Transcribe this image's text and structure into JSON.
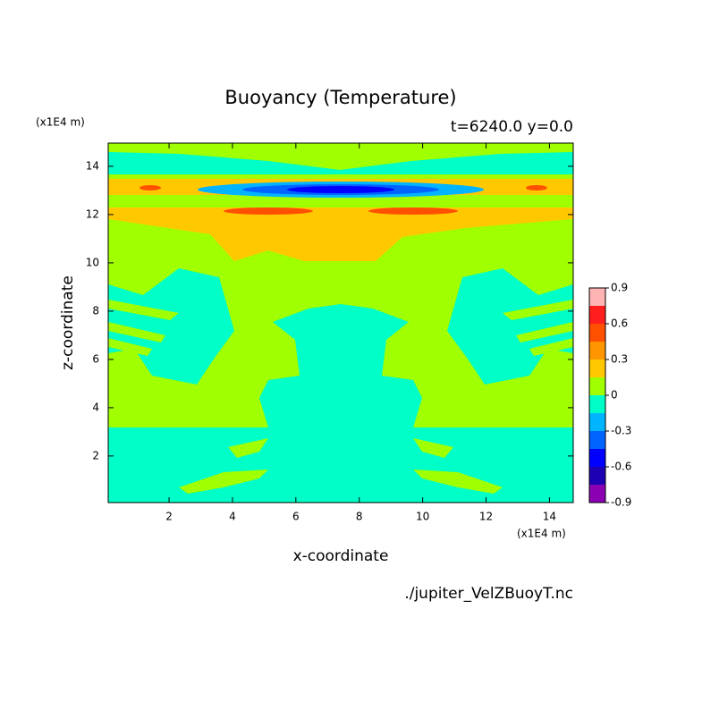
{
  "chart_data": {
    "type": "contour",
    "title": "Buoyancy (Temperature)",
    "subtitle": "t=6240.0 y=0.0",
    "xlabel": "x-coordinate",
    "ylabel": "z-coordinate",
    "x_unit": "(x1E4 m)",
    "y_unit": "(x1E4 m)",
    "source": "./jupiter_VelZBuoyT.nc",
    "xlim": [
      0.08,
      14.75
    ],
    "ylim": [
      0.07,
      14.96
    ],
    "xticks": [
      2,
      4,
      6,
      8,
      10,
      12,
      14
    ],
    "yticks": [
      2,
      4,
      6,
      8,
      10,
      12,
      14
    ],
    "colorbar": {
      "levels": [
        -0.9,
        -0.75,
        -0.6,
        -0.45,
        -0.3,
        -0.15,
        0,
        0.15,
        0.3,
        0.45,
        0.6,
        0.75,
        0.9
      ],
      "colors": [
        "#8c00b4",
        "#1e00b4",
        "#0000ff",
        "#0064ff",
        "#00b4ff",
        "#00ffc8",
        "#a0ff00",
        "#ffc800",
        "#ff9600",
        "#ff5000",
        "#ff1e1e",
        "#ffb4b4"
      ],
      "ticks": [
        0.9,
        0.6,
        0.3,
        0,
        -0.3,
        -0.6,
        -0.9
      ]
    }
  }
}
